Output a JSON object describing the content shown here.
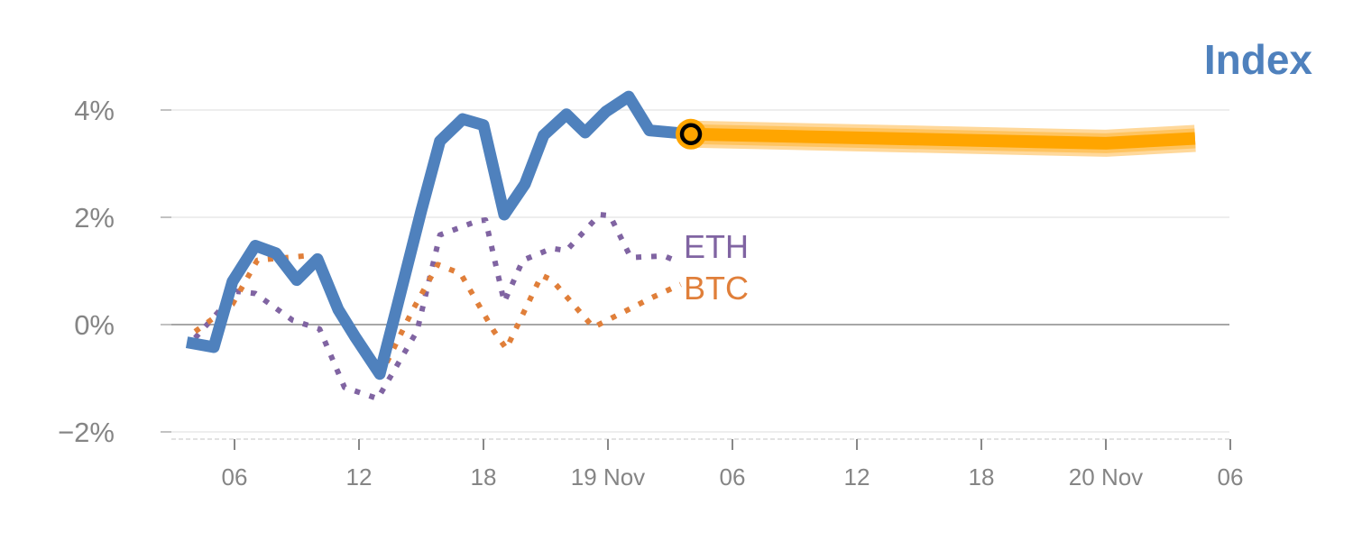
{
  "chart_data": {
    "type": "line",
    "title": "Index",
    "xlabel": "",
    "ylabel": "",
    "x_unit": "hours since 18 Nov 00:00",
    "xlim": [
      0,
      54
    ],
    "ylim": [
      -2.1,
      4.4
    ],
    "grid": true,
    "y_ticks": [
      {
        "value": 4,
        "label": "4%"
      },
      {
        "value": 2,
        "label": "2%"
      },
      {
        "value": 0,
        "label": "0%"
      },
      {
        "value": -2,
        "label": "−2%"
      }
    ],
    "x_ticks": [
      {
        "value": 6,
        "label": "06"
      },
      {
        "value": 12,
        "label": "12"
      },
      {
        "value": 18,
        "label": "18"
      },
      {
        "value": 24,
        "label": "19 Nov"
      },
      {
        "value": 30,
        "label": "06"
      },
      {
        "value": 36,
        "label": "12"
      },
      {
        "value": 42,
        "label": "18"
      },
      {
        "value": 48,
        "label": "20 Nov"
      },
      {
        "value": 54,
        "label": "06"
      }
    ],
    "series": [
      {
        "name": "Index",
        "color": "#4f81bd",
        "style": "solid",
        "x": [
          3.7,
          5.0,
          5.9,
          7.0,
          8.0,
          9.0,
          10.0,
          11.0,
          11.8,
          13.0,
          13.8,
          15.0,
          15.9,
          17.0,
          18.0,
          19.0,
          20.0,
          20.9,
          22.0,
          22.9,
          23.9,
          25.0,
          26.0,
          28.0
        ],
        "y": [
          -0.33,
          -0.42,
          0.8,
          1.47,
          1.33,
          0.83,
          1.22,
          0.28,
          -0.22,
          -0.92,
          0.28,
          2.12,
          3.42,
          3.83,
          3.72,
          2.05,
          2.62,
          3.53,
          3.92,
          3.58,
          3.97,
          4.25,
          3.62,
          3.55
        ]
      },
      {
        "name": "ETH",
        "color": "#8064a2",
        "style": "dotted",
        "x": [
          4.1,
          6.1,
          7.0,
          8.8,
          10.1,
          11.3,
          12.9,
          14.8,
          15.9,
          17.7,
          18.1,
          19.0,
          19.9,
          21.3,
          22.0,
          23.6,
          24.1,
          25.1,
          26.7,
          27.4
        ],
        "y": [
          -0.25,
          0.62,
          0.58,
          0.08,
          -0.08,
          -1.17,
          -1.38,
          -0.12,
          1.67,
          1.93,
          1.95,
          0.42,
          1.2,
          1.42,
          1.38,
          2.05,
          2.03,
          1.25,
          1.28,
          1.17
        ]
      },
      {
        "name": "BTC",
        "color": "#e07f3a",
        "style": "dotted",
        "x": [
          4.1,
          5.9,
          7.1,
          9.4,
          10.0,
          10.9,
          11.8,
          13.0,
          14.6,
          15.8,
          16.9,
          18.5,
          19.1,
          20.8,
          21.3,
          23.3,
          26.1,
          27.5
        ],
        "y": [
          -0.13,
          0.38,
          1.2,
          1.28,
          1.2,
          0.33,
          -0.13,
          -0.97,
          0.28,
          1.12,
          0.95,
          -0.12,
          -0.45,
          0.92,
          0.83,
          -0.05,
          0.5,
          0.75
        ]
      },
      {
        "name": "Forecast",
        "color": "#ffa500",
        "style": "band",
        "x": [
          28.0,
          48.0,
          52.3
        ],
        "y": [
          3.55,
          3.38,
          3.47
        ]
      }
    ],
    "current_point": {
      "x": 28.0,
      "y": 3.55
    },
    "series_labels": {
      "eth": "ETH",
      "btc": "BTC"
    }
  }
}
